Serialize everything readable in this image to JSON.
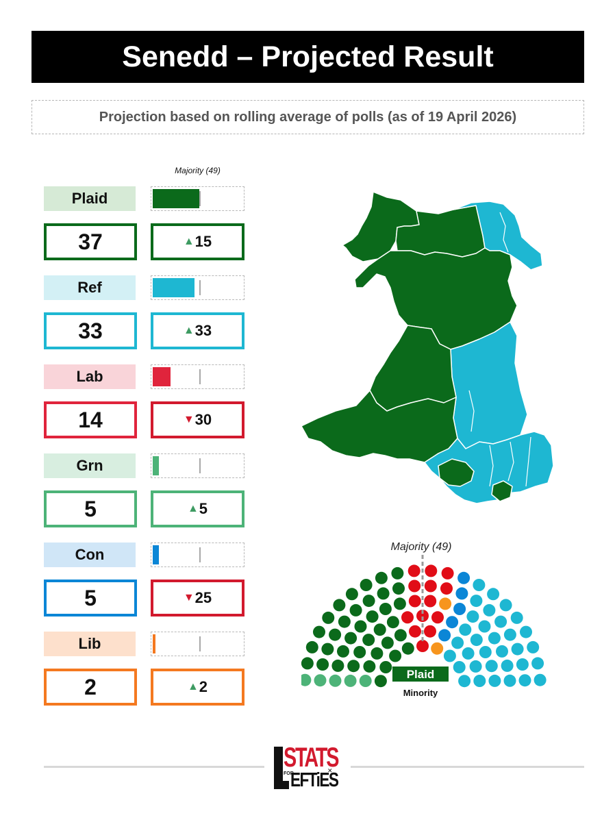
{
  "title": "Senedd – Projected Result",
  "subtitle": "Projection based on rolling average of polls (as of 19 April 2026)",
  "majority_label": "Majority (49)",
  "total_seats": 96,
  "majority_seats": 49,
  "colors": {
    "plaid": "#0b6a1b",
    "ref": "#1eb7d2",
    "lab": "#e0243c",
    "grn": "#4db378",
    "con": "#0b86d6",
    "lib": "#f47920",
    "border_down": "#d21a2e",
    "arrow_up": "#3e9b62",
    "parl_lab": "#e10d17",
    "parl_plaid": "#0b6a1b",
    "parl_ref": "#1eb7d2",
    "parl_grn": "#4db378",
    "parl_con": "#0b86d6",
    "parl_lib": "#f7951d"
  },
  "chart_data": {
    "type": "bar",
    "title": "Senedd – Projected Result",
    "subtitle": "Projection based on rolling average of polls (as of 19 April 2026)",
    "majority": 49,
    "xlim": [
      0,
      96
    ],
    "categories": [
      "Plaid",
      "Ref",
      "Lab",
      "Grn",
      "Con",
      "Lib"
    ],
    "values": [
      37,
      33,
      14,
      5,
      5,
      2
    ],
    "changes": [
      15,
      33,
      -30,
      5,
      -25,
      2
    ],
    "parties": [
      {
        "name": "Plaid",
        "seats": 37,
        "change": 15,
        "direction": "up",
        "color": "#0b6a1b",
        "label_bg": "#d6ead6"
      },
      {
        "name": "Ref",
        "seats": 33,
        "change": 33,
        "direction": "up",
        "color": "#1eb7d2",
        "label_bg": "#d3f0f5"
      },
      {
        "name": "Lab",
        "seats": 14,
        "change": 30,
        "direction": "down",
        "color": "#e0243c",
        "label_bg": "#f9d4d9"
      },
      {
        "name": "Grn",
        "seats": 5,
        "change": 5,
        "direction": "up",
        "color": "#4db378",
        "label_bg": "#d8eee0"
      },
      {
        "name": "Con",
        "seats": 5,
        "change": 25,
        "direction": "down",
        "color": "#0b86d6",
        "label_bg": "#d0e6f7"
      },
      {
        "name": "Lib",
        "seats": 2,
        "change": 2,
        "direction": "up",
        "color": "#f47920",
        "label_bg": "#fde0cc"
      }
    ],
    "government": {
      "party": "Plaid",
      "type": "Minority"
    }
  },
  "parliament": {
    "majority_label": "Majority (49)",
    "government_party": "Plaid",
    "government_type": "Minority",
    "seat_groups": [
      {
        "party": "Grn",
        "count": 5
      },
      {
        "party": "Plaid",
        "count": 37
      },
      {
        "party": "Lab",
        "count": 14
      },
      {
        "party": "Lib",
        "count": 2
      },
      {
        "party": "Con",
        "count": 5
      },
      {
        "party": "Ref",
        "count": 33
      }
    ]
  },
  "map": {
    "regions_won": [
      {
        "region": "north-west",
        "party": "Plaid"
      },
      {
        "region": "north-east",
        "party": "Ref"
      },
      {
        "region": "mid",
        "party": "Plaid"
      },
      {
        "region": "mid-east",
        "party": "Ref"
      },
      {
        "region": "west",
        "party": "Plaid"
      },
      {
        "region": "south-west",
        "party": "Plaid"
      },
      {
        "region": "south-east",
        "party": "Ref"
      },
      {
        "region": "swansea",
        "party": "Plaid"
      },
      {
        "region": "cardiff-area",
        "party": "Plaid"
      }
    ]
  },
  "logo": {
    "stats": "STATS",
    "for": "FOR",
    "efties": "EFTiES",
    "alt": "Stats for Lefties"
  }
}
